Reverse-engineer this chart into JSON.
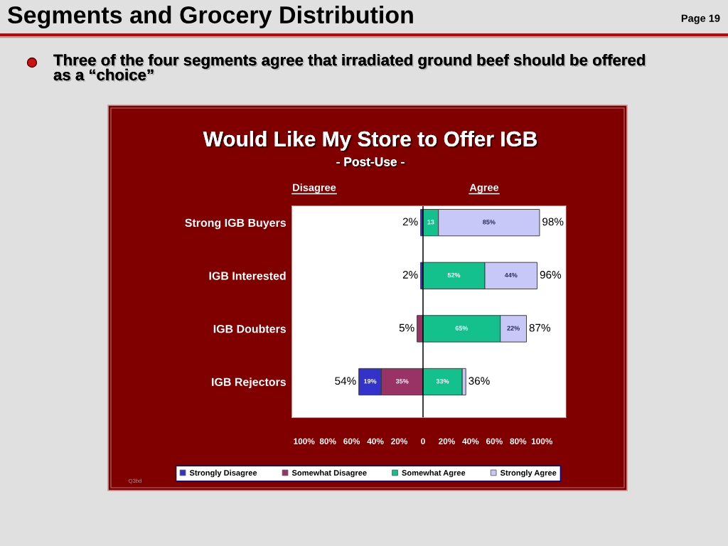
{
  "chart_data": {
    "type": "bar",
    "orientation": "horizontal",
    "title": "Would Like My Store to Offer IGB",
    "subtitle": "- Post-Use -",
    "categories": [
      "Strong IGB Buyers",
      "IGB Interested",
      "IGB Doubters",
      "IGB Rejectors"
    ],
    "series": [
      {
        "name": "Strongly Disagree",
        "color": "#3333cc",
        "base": [
          -2,
          -2,
          null,
          -54
        ],
        "values": [
          2,
          2,
          null,
          19
        ],
        "value_labels": [
          null,
          null,
          null,
          "19%"
        ]
      },
      {
        "name": "Somewhat Disagree",
        "color": "#993366",
        "base": [
          null,
          null,
          -5,
          -35
        ],
        "values": [
          null,
          null,
          5,
          35
        ],
        "value_labels": [
          null,
          null,
          null,
          "35%"
        ]
      },
      {
        "name": "Somewhat Agree",
        "color": "#14c08c",
        "base": [
          0,
          0,
          0,
          0
        ],
        "values": [
          13,
          52,
          65,
          33
        ],
        "value_labels": [
          "13",
          "52%",
          "65%",
          "33%"
        ]
      },
      {
        "name": "Strongly Agree",
        "color": "#c8c8f8",
        "base": [
          13,
          52,
          65,
          33
        ],
        "values": [
          85,
          44,
          22,
          3
        ],
        "value_labels": [
          "85%",
          "44%",
          "22%",
          null
        ]
      }
    ],
    "xlim": [
      -110,
      120
    ],
    "xticks": [
      {
        "value": -100,
        "label": "100%"
      },
      {
        "value": -80,
        "label": "80%"
      },
      {
        "value": -60,
        "label": "60%"
      },
      {
        "value": -40,
        "label": "40%"
      },
      {
        "value": -20,
        "label": "20%"
      },
      0,
      {
        "value": 20,
        "label": "20%"
      },
      {
        "value": 40,
        "label": "40%"
      },
      {
        "value": 60,
        "label": "60%"
      },
      {
        "value": 80,
        "label": "80%"
      },
      {
        "value": 100,
        "label": "100%"
      }
    ],
    "ref_lines": [
      {
        "axis": "x",
        "value": 0,
        "color": "#000000"
      }
    ],
    "legend": "bottom",
    "annotations": [
      "Segments and Grocery Distribution",
      "Page 19",
      "Three of the four segments agree that irradiated ground beef should be offered as a “choice”",
      "Disagree",
      "Agree",
      "Q3bd",
      {
        "text": "2%",
        "x": -2,
        "y": "Strong IGB Buyers"
      },
      {
        "text": "98%",
        "x": 98,
        "y": "Strong IGB Buyers"
      },
      {
        "text": "2%",
        "x": -2,
        "y": "IGB Interested"
      },
      {
        "text": "96%",
        "x": 96,
        "y": "IGB Interested"
      },
      {
        "text": "5%",
        "x": -5,
        "y": "IGB Doubters"
      },
      {
        "text": "87%",
        "x": 87,
        "y": "IGB Doubters"
      },
      {
        "text": "54%",
        "x": -54,
        "y": "IGB Rejectors"
      },
      {
        "text": "36%",
        "x": 36,
        "y": "IGB Rejectors"
      }
    ]
  }
}
